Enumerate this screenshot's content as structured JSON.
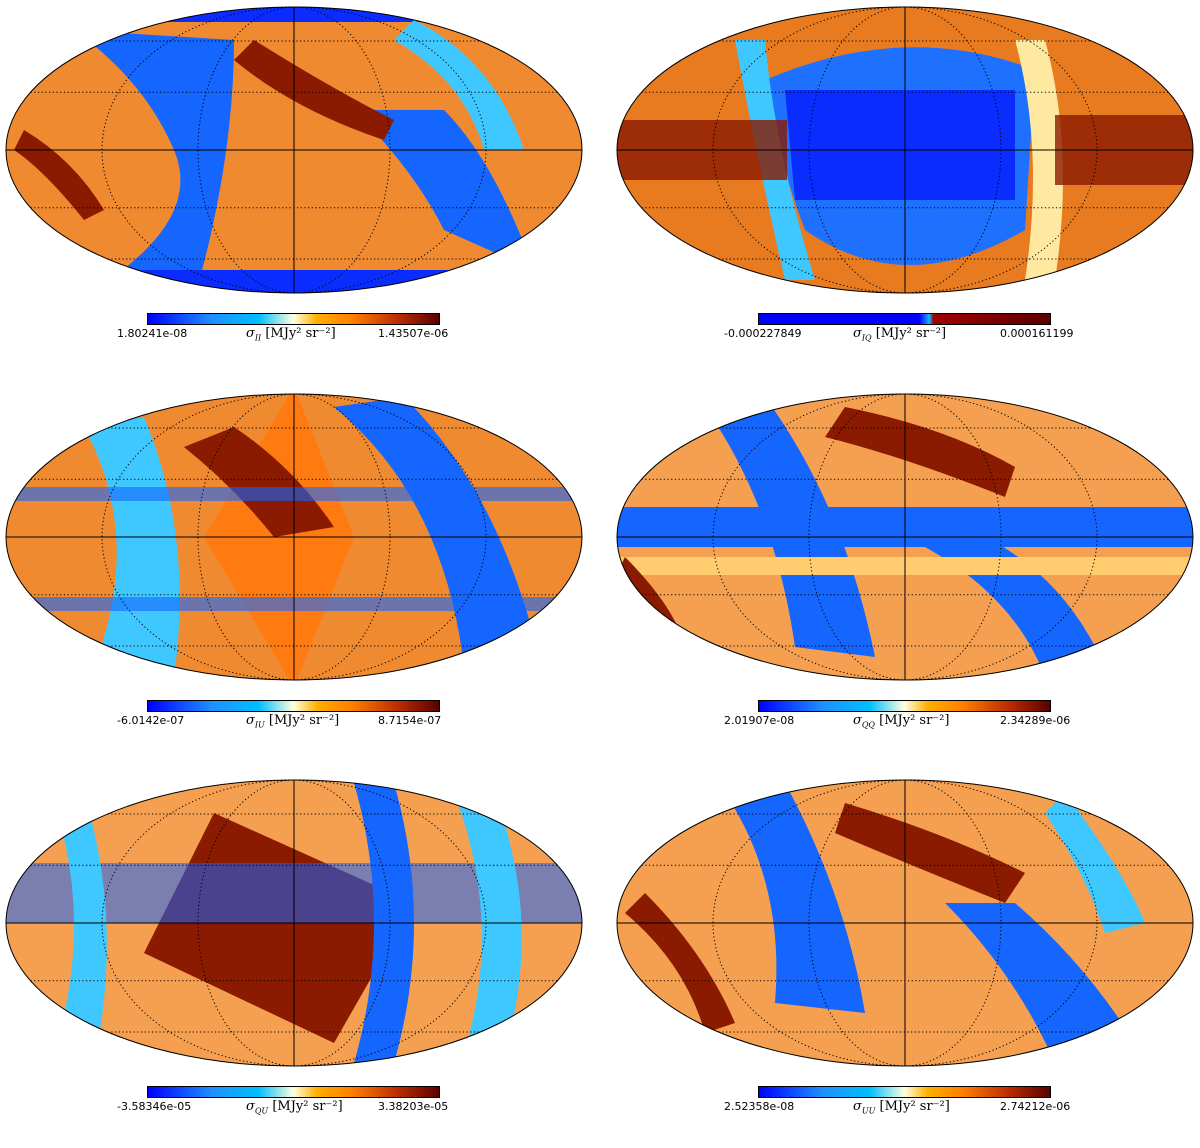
{
  "colors": {
    "low": "#0000ff",
    "mid_low": "#00bfff",
    "mid": "#ffffe0",
    "mid_high": "#ff7f00",
    "high": "#5a0000",
    "graticule": "#000000"
  },
  "map_projection": "Mollweide",
  "graticule": "dotted",
  "panels": [
    {
      "id": "II",
      "symbol": "σ",
      "subscript": "II",
      "unit": "[MJy² sr⁻²]",
      "min_label": "1.80241e-08",
      "max_label": "1.43507e-06",
      "dominant": "warm"
    },
    {
      "id": "IQ",
      "symbol": "σ",
      "subscript": "IQ",
      "unit": "[MJy² sr⁻²]",
      "min_label": "-0.000227849",
      "max_label": "0.000161199",
      "dominant": "split"
    },
    {
      "id": "IU",
      "symbol": "σ",
      "subscript": "IU",
      "unit": "[MJy² sr⁻²]",
      "min_label": "-6.0142e-07",
      "max_label": "8.7154e-07",
      "dominant": "warm"
    },
    {
      "id": "QQ",
      "symbol": "σ",
      "subscript": "QQ",
      "unit": "[MJy² sr⁻²]",
      "min_label": "2.01907e-08",
      "max_label": "2.34289e-06",
      "dominant": "mixed"
    },
    {
      "id": "QU",
      "symbol": "σ",
      "subscript": "QU",
      "unit": "[MJy² sr⁻²]",
      "min_label": "-3.58346e-05",
      "max_label": "3.38203e-05",
      "dominant": "split"
    },
    {
      "id": "UU",
      "symbol": "σ",
      "subscript": "UU",
      "unit": "[MJy² sr⁻²]",
      "min_label": "2.52358e-08",
      "max_label": "2.74212e-06",
      "dominant": "mixed"
    }
  ]
}
